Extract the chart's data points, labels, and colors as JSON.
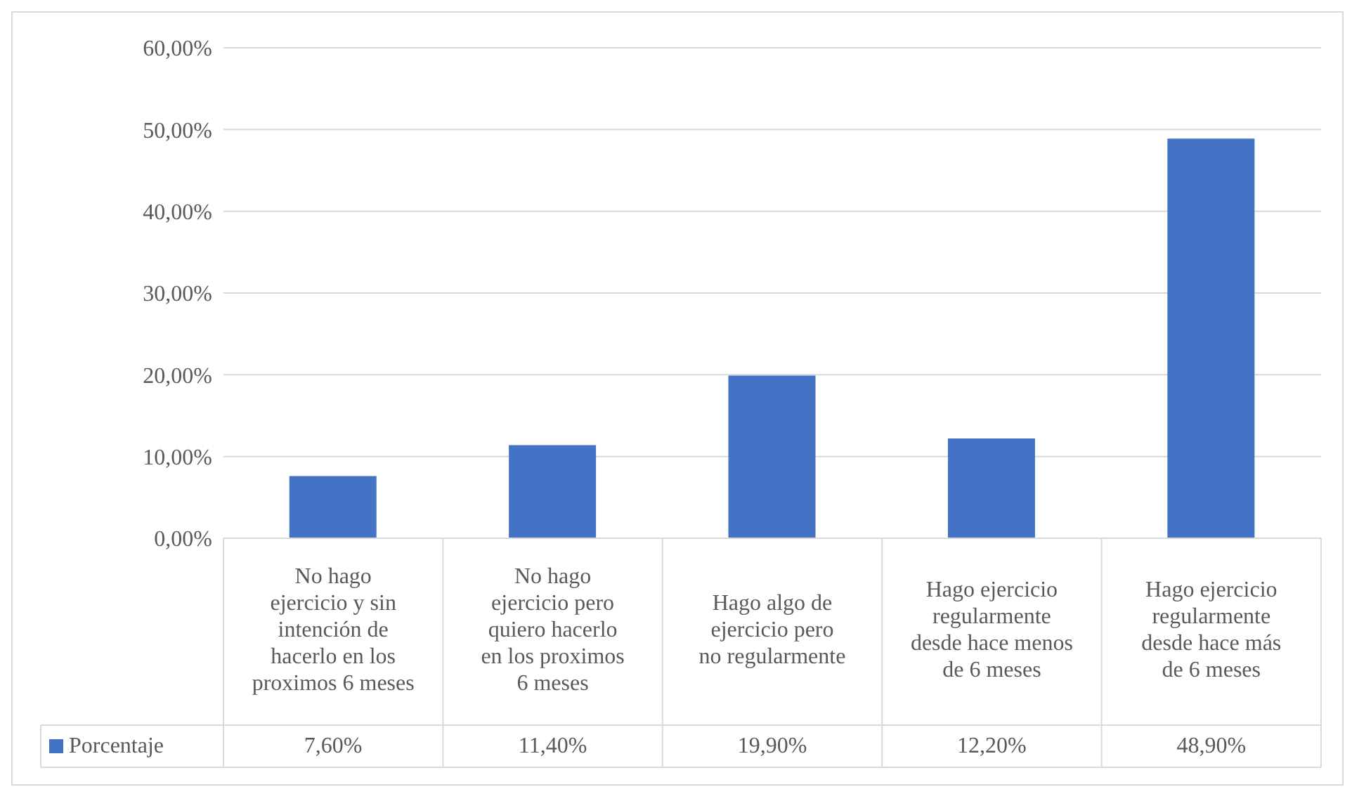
{
  "chart_data": {
    "type": "bar",
    "categories": [
      "No hago ejercicio y sin intención de hacerlo en los proximos 6 meses",
      "No hago ejercicio pero quiero hacerlo en los proximos 6 meses",
      "Hago algo de ejercicio pero no regularmente",
      "Hago ejercicio regularmente desde hace menos de 6 meses",
      "Hago ejercicio regularmente desde hace más de 6 meses"
    ],
    "series": [
      {
        "name": "Porcentaje",
        "color": "#4472c4",
        "values": [
          7.6,
          11.4,
          19.9,
          12.2,
          48.9
        ],
        "value_labels": [
          "7,60%",
          "11,40%",
          "19,90%",
          "12,20%",
          "48,90%"
        ]
      }
    ],
    "ylim": [
      0,
      60
    ],
    "yticks": [
      {
        "value": 0,
        "label": "0,00%"
      },
      {
        "value": 10,
        "label": "10,00%"
      },
      {
        "value": 20,
        "label": "20,00%"
      },
      {
        "value": 30,
        "label": "30,00%"
      },
      {
        "value": 40,
        "label": "40,00%"
      },
      {
        "value": 50,
        "label": "50,00%"
      },
      {
        "value": 60,
        "label": "60,00%"
      }
    ],
    "grid": "y",
    "legend": "bottom left"
  }
}
